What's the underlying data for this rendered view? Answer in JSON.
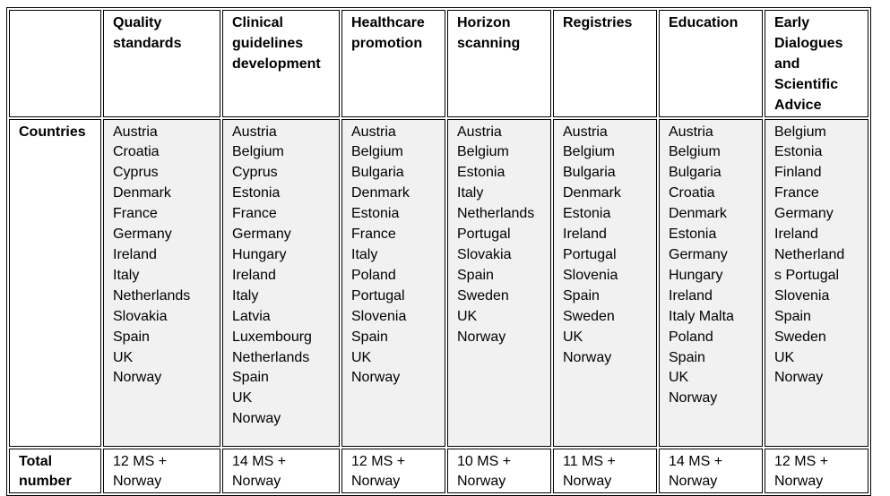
{
  "table": {
    "corner_label": "",
    "headers": [
      "Quality standards",
      "Clinical guidelines development",
      "Healthcare promotion",
      "Horizon scanning",
      "Registries",
      "Education",
      "Early Dialogues and Scientific Advice"
    ],
    "countries_label": "Countries",
    "total_label": "Total number",
    "countries": [
      [
        "Austria",
        "Croatia",
        "Cyprus",
        "Denmark",
        "France",
        "Germany",
        "Ireland",
        "Italy",
        "Netherlands",
        "Slovakia",
        "Spain",
        "UK",
        " Norway"
      ],
      [
        "Austria",
        "Belgium",
        "Cyprus",
        "Estonia",
        "France",
        "Germany",
        "Hungary",
        "Ireland",
        "Italy",
        "Latvia",
        "Luxembourg",
        "Netherlands",
        "Spain",
        "UK",
        "Norway"
      ],
      [
        "Austria",
        "Belgium",
        "Bulgaria",
        "Denmark",
        "Estonia",
        "France",
        "Italy",
        "Poland",
        "Portugal",
        "Slovenia",
        "Spain",
        "UK",
        "Norway"
      ],
      [
        "Austria",
        "Belgium",
        "Estonia",
        "Italy",
        "Netherlands",
        "Portugal",
        "Slovakia",
        "Spain",
        "Sweden",
        "UK",
        " Norway"
      ],
      [
        "Austria",
        "Belgium",
        "Bulgaria",
        "Denmark",
        "Estonia",
        "Ireland",
        "Portugal",
        "Slovenia",
        "Spain",
        "Sweden",
        "UK",
        "Norway"
      ],
      [
        "Austria",
        "Belgium",
        "Bulgaria",
        "Croatia",
        "Denmark",
        "Estonia",
        "Germany",
        "Hungary",
        "Ireland",
        "Italy Malta",
        "Poland",
        "Spain",
        "UK",
        "Norway"
      ],
      [
        "Belgium",
        "Estonia",
        "Finland",
        "France",
        "Germany",
        "Ireland",
        "Netherland",
        "s Portugal",
        "Slovenia",
        "Spain",
        "Sweden",
        "UK",
        "Norway"
      ]
    ],
    "totals": [
      [
        "12 MS +",
        "Norway"
      ],
      [
        "14 MS +",
        "Norway"
      ],
      [
        "12 MS +",
        "Norway"
      ],
      [
        "10 MS +",
        "Norway"
      ],
      [
        "11 MS +",
        "Norway"
      ],
      [
        "14 MS +",
        "Norway"
      ],
      [
        "12 MS +",
        "Norway"
      ]
    ]
  }
}
